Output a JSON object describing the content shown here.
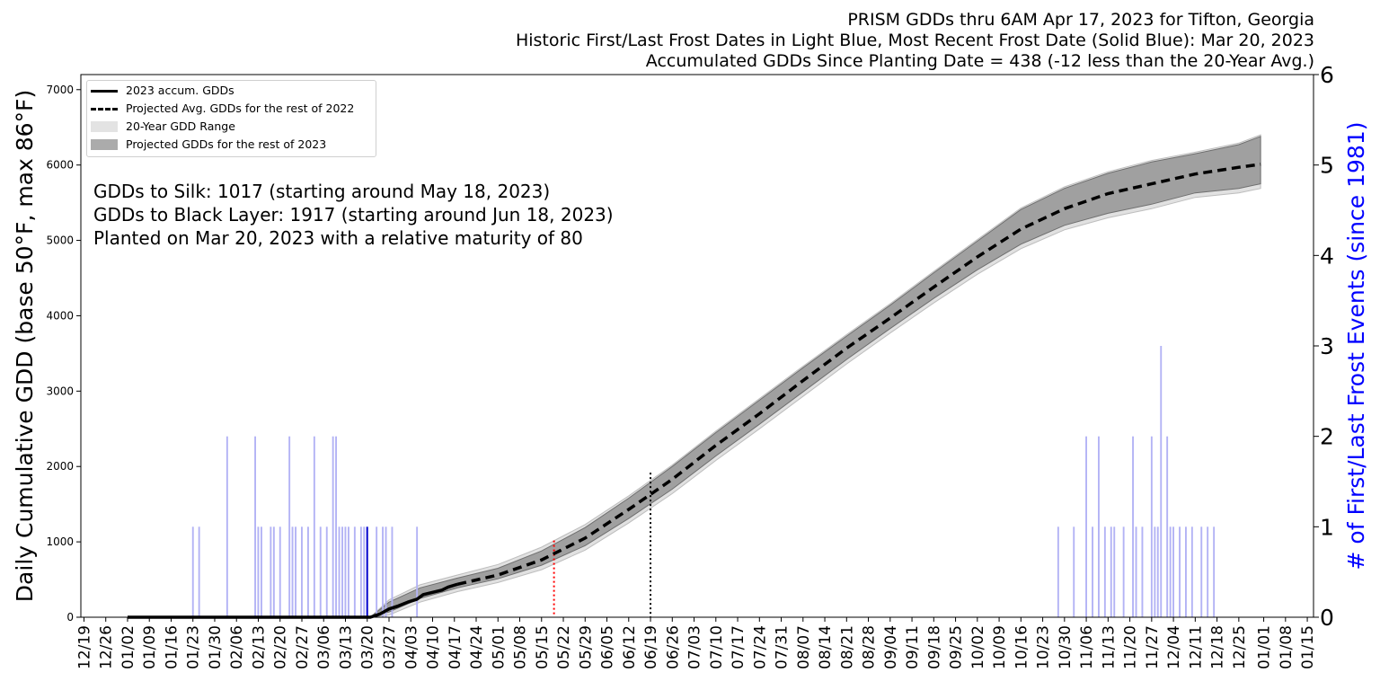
{
  "titles": [
    "PRISM GDDs thru 6AM Apr 17, 2023 for Tifton, Georgia",
    "Historic First/Last Frost Dates in Light Blue, Most Recent Frost Date (Solid Blue): Mar 20, 2023",
    "Accumulated GDDs Since Planting Date = 438 (-12 less than the 20-Year Avg.)"
  ],
  "legend": [
    {
      "label": "2023 accum. GDDs",
      "style": "solid"
    },
    {
      "label": "Projected Avg. GDDs for the rest of 2022",
      "style": "dash"
    },
    {
      "label": "20-Year GDD Range",
      "style": "light"
    },
    {
      "label": "Projected GDDs for the rest of 2023",
      "style": "dark"
    }
  ],
  "annotations": [
    "GDDs to Silk: 1017 (starting around May 18, 2023)",
    "GDDs to Black Layer: 1917 (starting around Jun 18, 2023)",
    "Planted on Mar 20, 2023 with a relative maturity of 80"
  ],
  "colors": {
    "frost_bar": "#b3b3f5",
    "frost_recent": "#0000cc",
    "range_light": "#e1e1e1",
    "range_dark": "#a0a0a0",
    "right_axis_label": "#0000ff",
    "silk_line": "#ff0000",
    "black_layer_line": "#000000"
  },
  "chart_data": {
    "type": "line",
    "ylabel": "Daily Cumulative GDD (base 50°F, max 86°F)",
    "y2label": "# of First/Last Frost Events (since 1981)",
    "xlim_days": [
      -14,
      382
    ],
    "ylim": [
      0,
      7200
    ],
    "y2lim": [
      0,
      6
    ],
    "yticks": [
      0,
      1000,
      2000,
      3000,
      4000,
      5000,
      6000,
      7000
    ],
    "y2ticks": [
      0,
      1,
      2,
      3,
      4,
      5,
      6
    ],
    "xticks": [
      {
        "day": -13,
        "label": "12/19"
      },
      {
        "day": -6,
        "label": "12/26"
      },
      {
        "day": 1,
        "label": "01/02"
      },
      {
        "day": 8,
        "label": "01/09"
      },
      {
        "day": 15,
        "label": "01/16"
      },
      {
        "day": 22,
        "label": "01/23"
      },
      {
        "day": 29,
        "label": "01/30"
      },
      {
        "day": 36,
        "label": "02/06"
      },
      {
        "day": 43,
        "label": "02/13"
      },
      {
        "day": 50,
        "label": "02/20"
      },
      {
        "day": 57,
        "label": "02/27"
      },
      {
        "day": 64,
        "label": "03/06"
      },
      {
        "day": 71,
        "label": "03/13"
      },
      {
        "day": 78,
        "label": "03/20"
      },
      {
        "day": 85,
        "label": "03/27"
      },
      {
        "day": 92,
        "label": "04/03"
      },
      {
        "day": 99,
        "label": "04/10"
      },
      {
        "day": 106,
        "label": "04/17"
      },
      {
        "day": 113,
        "label": "04/24"
      },
      {
        "day": 120,
        "label": "05/01"
      },
      {
        "day": 127,
        "label": "05/08"
      },
      {
        "day": 134,
        "label": "05/15"
      },
      {
        "day": 141,
        "label": "05/22"
      },
      {
        "day": 148,
        "label": "05/29"
      },
      {
        "day": 155,
        "label": "06/05"
      },
      {
        "day": 162,
        "label": "06/12"
      },
      {
        "day": 169,
        "label": "06/19"
      },
      {
        "day": 176,
        "label": "06/26"
      },
      {
        "day": 183,
        "label": "07/03"
      },
      {
        "day": 190,
        "label": "07/10"
      },
      {
        "day": 197,
        "label": "07/17"
      },
      {
        "day": 204,
        "label": "07/24"
      },
      {
        "day": 211,
        "label": "07/31"
      },
      {
        "day": 218,
        "label": "08/07"
      },
      {
        "day": 225,
        "label": "08/14"
      },
      {
        "day": 232,
        "label": "08/21"
      },
      {
        "day": 239,
        "label": "08/28"
      },
      {
        "day": 246,
        "label": "09/04"
      },
      {
        "day": 253,
        "label": "09/11"
      },
      {
        "day": 260,
        "label": "09/18"
      },
      {
        "day": 267,
        "label": "09/25"
      },
      {
        "day": 274,
        "label": "10/02"
      },
      {
        "day": 281,
        "label": "10/09"
      },
      {
        "day": 288,
        "label": "10/16"
      },
      {
        "day": 295,
        "label": "10/23"
      },
      {
        "day": 302,
        "label": "10/30"
      },
      {
        "day": 309,
        "label": "11/06"
      },
      {
        "day": 316,
        "label": "11/13"
      },
      {
        "day": 323,
        "label": "11/20"
      },
      {
        "day": 330,
        "label": "11/27"
      },
      {
        "day": 337,
        "label": "12/04"
      },
      {
        "day": 344,
        "label": "12/11"
      },
      {
        "day": 351,
        "label": "12/18"
      },
      {
        "day": 358,
        "label": "12/25"
      },
      {
        "day": 366,
        "label": "01/01"
      },
      {
        "day": 373,
        "label": "01/08"
      },
      {
        "day": 380,
        "label": "01/15"
      }
    ],
    "accum_2023": [
      [
        1,
        0
      ],
      [
        79,
        0
      ],
      [
        82,
        40
      ],
      [
        85,
        110
      ],
      [
        88,
        150
      ],
      [
        91,
        200
      ],
      [
        94,
        240
      ],
      [
        96,
        300
      ],
      [
        99,
        330
      ],
      [
        102,
        360
      ],
      [
        104,
        400
      ],
      [
        107,
        438
      ]
    ],
    "projected_avg": [
      [
        107,
        438
      ],
      [
        120,
        560
      ],
      [
        134,
        760
      ],
      [
        148,
        1050
      ],
      [
        162,
        1430
      ],
      [
        176,
        1830
      ],
      [
        190,
        2280
      ],
      [
        204,
        2700
      ],
      [
        218,
        3140
      ],
      [
        232,
        3570
      ],
      [
        246,
        3970
      ],
      [
        260,
        4380
      ],
      [
        274,
        4780
      ],
      [
        288,
        5150
      ],
      [
        302,
        5420
      ],
      [
        316,
        5620
      ],
      [
        330,
        5750
      ],
      [
        344,
        5880
      ],
      [
        358,
        5970
      ],
      [
        365,
        6010
      ]
    ],
    "projected_band": [
      [
        79,
        0,
        0
      ],
      [
        85,
        70,
        200
      ],
      [
        95,
        250,
        390
      ],
      [
        107,
        390,
        520
      ],
      [
        120,
        510,
        650
      ],
      [
        134,
        690,
        880
      ],
      [
        148,
        950,
        1190
      ],
      [
        162,
        1310,
        1580
      ],
      [
        176,
        1700,
        2000
      ],
      [
        190,
        2140,
        2450
      ],
      [
        204,
        2560,
        2880
      ],
      [
        218,
        2990,
        3310
      ],
      [
        232,
        3420,
        3730
      ],
      [
        246,
        3830,
        4140
      ],
      [
        260,
        4230,
        4570
      ],
      [
        274,
        4610,
        4990
      ],
      [
        288,
        4950,
        5410
      ],
      [
        302,
        5200,
        5690
      ],
      [
        316,
        5360,
        5890
      ],
      [
        330,
        5480,
        6040
      ],
      [
        344,
        5630,
        6150
      ],
      [
        358,
        5690,
        6270
      ],
      [
        365,
        5750,
        6380
      ]
    ],
    "range_band": [
      [
        79,
        0,
        0
      ],
      [
        85,
        30,
        230
      ],
      [
        95,
        200,
        430
      ],
      [
        107,
        340,
        560
      ],
      [
        120,
        460,
        700
      ],
      [
        134,
        630,
        930
      ],
      [
        148,
        890,
        1230
      ],
      [
        162,
        1250,
        1610
      ],
      [
        176,
        1640,
        2020
      ],
      [
        190,
        2080,
        2470
      ],
      [
        204,
        2500,
        2900
      ],
      [
        218,
        2930,
        3330
      ],
      [
        232,
        3360,
        3750
      ],
      [
        246,
        3770,
        4160
      ],
      [
        260,
        4170,
        4590
      ],
      [
        274,
        4550,
        5010
      ],
      [
        288,
        4890,
        5430
      ],
      [
        302,
        5140,
        5710
      ],
      [
        316,
        5300,
        5910
      ],
      [
        330,
        5420,
        6060
      ],
      [
        344,
        5570,
        6170
      ],
      [
        358,
        5630,
        6290
      ],
      [
        365,
        5690,
        6400
      ]
    ],
    "silk_marker": {
      "day": 138,
      "gdd": 1017
    },
    "black_layer_marker": {
      "day": 169,
      "gdd": 1917
    },
    "recent_frost": {
      "day": 78,
      "count": 1
    },
    "frost_events": [
      [
        22,
        1
      ],
      [
        24,
        1
      ],
      [
        33,
        2
      ],
      [
        42,
        2
      ],
      [
        43,
        1
      ],
      [
        44,
        1
      ],
      [
        47,
        1
      ],
      [
        48,
        1
      ],
      [
        50,
        1
      ],
      [
        53,
        2
      ],
      [
        54,
        1
      ],
      [
        55,
        1
      ],
      [
        57,
        1
      ],
      [
        59,
        1
      ],
      [
        61,
        2
      ],
      [
        63,
        1
      ],
      [
        65,
        1
      ],
      [
        67,
        2
      ],
      [
        68,
        2
      ],
      [
        69,
        1
      ],
      [
        70,
        1
      ],
      [
        71,
        1
      ],
      [
        72,
        1
      ],
      [
        74,
        1
      ],
      [
        76,
        1
      ],
      [
        77,
        1
      ],
      [
        81,
        1
      ],
      [
        83,
        1
      ],
      [
        84,
        1
      ],
      [
        86,
        1
      ],
      [
        94,
        1
      ],
      [
        300,
        1
      ],
      [
        305,
        1
      ],
      [
        309,
        2
      ],
      [
        311,
        1
      ],
      [
        313,
        2
      ],
      [
        315,
        1
      ],
      [
        317,
        1
      ],
      [
        318,
        1
      ],
      [
        321,
        1
      ],
      [
        324,
        2
      ],
      [
        325,
        1
      ],
      [
        327,
        1
      ],
      [
        330,
        2
      ],
      [
        331,
        1
      ],
      [
        332,
        1
      ],
      [
        333,
        3
      ],
      [
        335,
        2
      ],
      [
        336,
        1
      ],
      [
        337,
        1
      ],
      [
        339,
        1
      ],
      [
        341,
        1
      ],
      [
        343,
        1
      ],
      [
        346,
        1
      ],
      [
        348,
        1
      ],
      [
        350,
        1
      ]
    ]
  }
}
